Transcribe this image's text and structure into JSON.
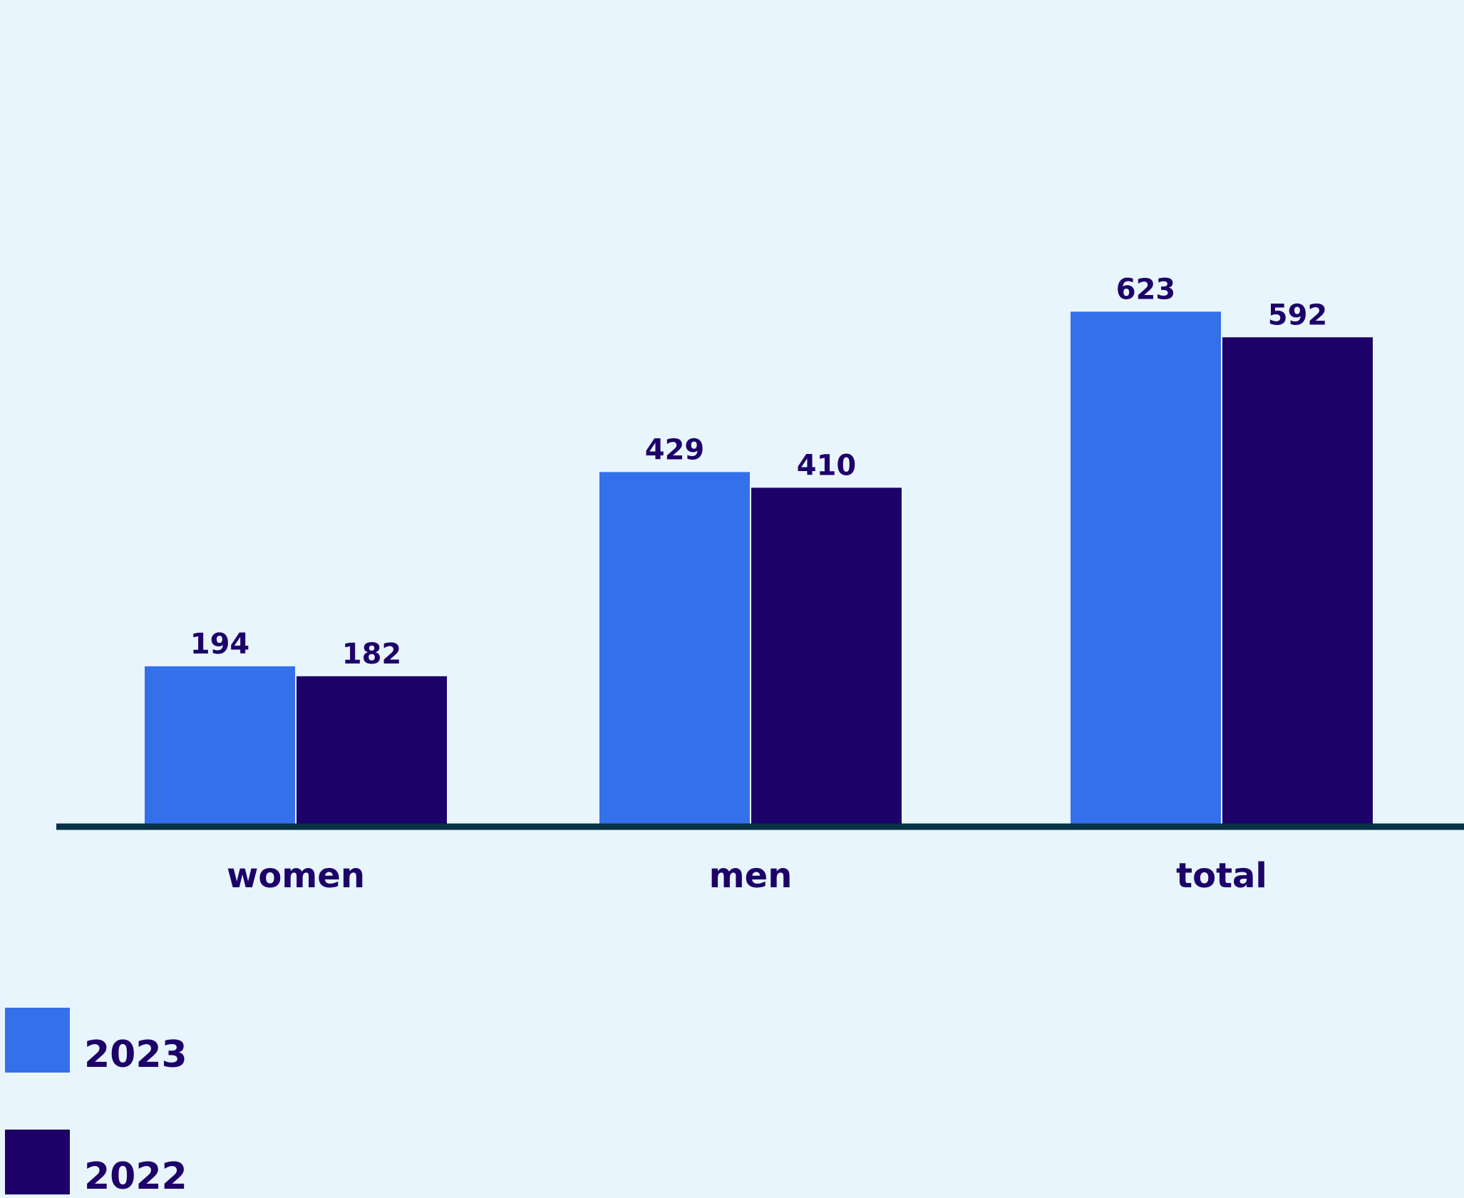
{
  "colors": {
    "background": "#e8f5fd",
    "series_2023": "#3370ea",
    "series_2022": "#1d0068",
    "axis": "#083346",
    "text": "#1d0068"
  },
  "chart_data": {
    "type": "bar",
    "categories": [
      "women",
      "men",
      "total"
    ],
    "series": [
      {
        "name": "2023",
        "values": [
          194,
          429,
          623
        ]
      },
      {
        "name": "2022",
        "values": [
          182,
          410,
          592
        ]
      }
    ],
    "title": "",
    "xlabel": "",
    "ylabel": "",
    "ylim": [
      0,
      1000
    ],
    "grid": false,
    "legend_position": "bottom-left"
  }
}
